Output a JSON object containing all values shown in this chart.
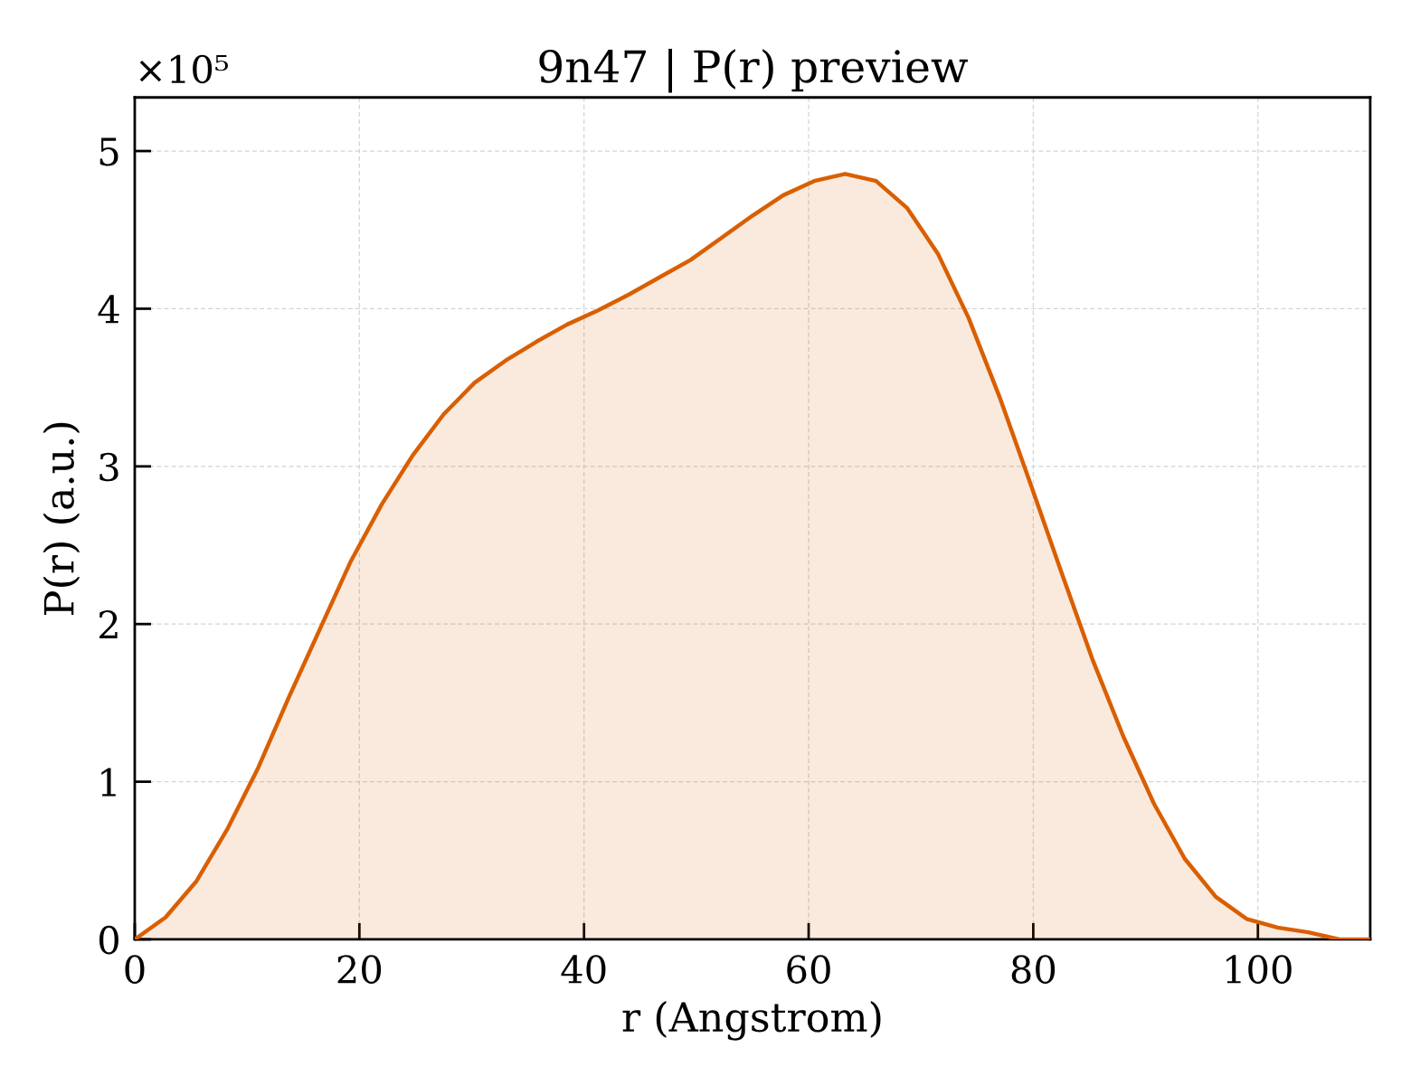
{
  "chart_data": {
    "type": "area",
    "title": "9n47 | P(r) preview",
    "xlabel": "r (Angstrom)",
    "ylabel": "P(r) (a.u.)",
    "x": [
      0,
      2.75,
      5.5,
      8.25,
      11,
      13.75,
      16.5,
      19.25,
      22,
      24.75,
      27.5,
      30.25,
      33,
      35.75,
      38.5,
      41.25,
      44,
      46.75,
      49.5,
      52.25,
      55,
      57.75,
      60.5,
      63.25,
      66,
      68.75,
      71.5,
      74.25,
      77,
      79.75,
      82.5,
      85.25,
      88,
      90.75,
      93.5,
      96.25,
      99,
      101.75,
      104.5,
      107.25,
      110
    ],
    "series": [
      {
        "color": "#d95f02",
        "values": [
          0,
          0.14,
          0.37,
          0.7,
          1.09,
          1.54,
          1.97,
          2.4,
          2.76,
          3.07,
          3.33,
          3.53,
          3.67,
          3.79,
          3.9,
          3.99,
          4.09,
          4.2,
          4.31,
          4.45,
          4.59,
          4.72,
          4.81,
          4.855,
          4.81,
          4.64,
          4.35,
          3.94,
          3.44,
          2.89,
          2.33,
          1.78,
          1.29,
          0.86,
          0.51,
          0.27,
          0.13,
          0.075,
          0.045,
          0,
          0
        ]
      }
    ],
    "xlim": [
      0,
      110
    ],
    "xticks": [
      0,
      20,
      40,
      60,
      80,
      100
    ],
    "ylim": [
      0,
      5.34
    ],
    "yticks": [
      0,
      1,
      2,
      3,
      4,
      5
    ],
    "grid": true,
    "annotations": [
      "×10⁵"
    ]
  }
}
